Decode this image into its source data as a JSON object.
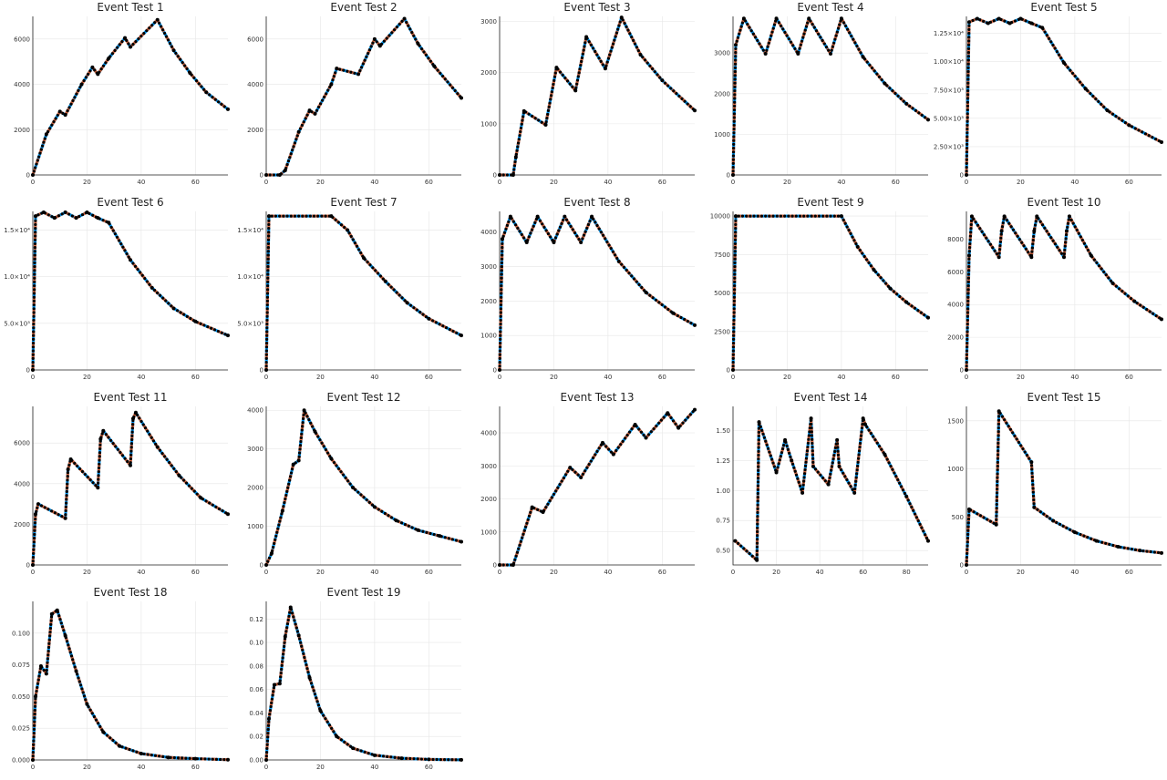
{
  "chart_data": [
    {
      "type": "line",
      "title": "Event Test 1",
      "xlim": [
        0,
        72
      ],
      "ylim": [
        0,
        7000
      ],
      "xticks": [
        0,
        20,
        40,
        60
      ],
      "yticks": [
        0,
        2000,
        4000,
        6000
      ],
      "ytick_labels": [
        "0",
        "2000",
        "4000",
        "6000"
      ],
      "series": [
        {
          "x": [
            0,
            5,
            10,
            12,
            18,
            22,
            24,
            28,
            34,
            36,
            46,
            52,
            58,
            64,
            72
          ],
          "y": [
            0,
            1800,
            2800,
            2650,
            4000,
            4750,
            4450,
            5150,
            6050,
            5650,
            6850,
            5500,
            4500,
            3650,
            2900
          ]
        }
      ]
    },
    {
      "type": "line",
      "title": "Event Test 2",
      "xlim": [
        0,
        72
      ],
      "ylim": [
        0,
        7000
      ],
      "xticks": [
        0,
        20,
        40,
        60
      ],
      "yticks": [
        0,
        2000,
        4000,
        6000
      ],
      "ytick_labels": [
        "0",
        "2000",
        "4000",
        "6000"
      ],
      "series": [
        {
          "x": [
            0,
            5,
            7,
            12,
            16,
            18,
            24,
            26,
            34,
            40,
            42,
            51,
            56,
            62,
            72
          ],
          "y": [
            0,
            0,
            200,
            1900,
            2850,
            2700,
            4000,
            4700,
            4450,
            6000,
            5700,
            6900,
            5800,
            4800,
            3400
          ]
        }
      ]
    },
    {
      "type": "line",
      "title": "Event Test 3",
      "xlim": [
        0,
        72
      ],
      "ylim": [
        0,
        3100
      ],
      "xticks": [
        0,
        20,
        40,
        60
      ],
      "yticks": [
        0,
        1000,
        2000,
        3000
      ],
      "ytick_labels": [
        "0",
        "1000",
        "2000",
        "3000"
      ],
      "series": [
        {
          "x": [
            0,
            5,
            6,
            9,
            17,
            21,
            28,
            32,
            39,
            45,
            52,
            60,
            72
          ],
          "y": [
            0,
            0,
            350,
            1250,
            980,
            2100,
            1650,
            2700,
            2080,
            3080,
            2350,
            1850,
            1260
          ]
        }
      ]
    },
    {
      "type": "line",
      "title": "Event Test 4",
      "xlim": [
        0,
        72
      ],
      "ylim": [
        0,
        3900
      ],
      "xticks": [
        0,
        20,
        40,
        60
      ],
      "yticks": [
        0,
        1000,
        2000,
        3000
      ],
      "ytick_labels": [
        "0",
        "1000",
        "2000",
        "3000"
      ],
      "series": [
        {
          "x": [
            0,
            1,
            4,
            12,
            16,
            24,
            28,
            36,
            40,
            48,
            56,
            64,
            72
          ],
          "y": [
            0,
            3200,
            3850,
            2980,
            3850,
            2980,
            3850,
            2980,
            3850,
            2900,
            2250,
            1750,
            1360
          ]
        }
      ]
    },
    {
      "type": "line",
      "title": "Event Test 5",
      "xlim": [
        0,
        72
      ],
      "ylim": [
        0,
        14000
      ],
      "xticks": [
        0,
        20,
        40,
        60
      ],
      "yticks": [
        0,
        2500,
        5000,
        7500,
        10000,
        12500
      ],
      "ytick_labels": [
        "0",
        "2.50×10³",
        "5.00×10³",
        "7.50×10³",
        "1.00×10⁴",
        "1.25×10⁴"
      ],
      "series": [
        {
          "x": [
            0,
            1,
            4,
            8,
            12,
            16,
            20,
            24,
            28,
            36,
            44,
            52,
            60,
            72
          ],
          "y": [
            0,
            13500,
            13800,
            13400,
            13800,
            13400,
            13800,
            13400,
            13000,
            9900,
            7600,
            5700,
            4400,
            2900
          ]
        }
      ]
    },
    {
      "type": "line",
      "title": "Event Test 6",
      "xlim": [
        0,
        72
      ],
      "ylim": [
        0,
        17000
      ],
      "xticks": [
        0,
        20,
        40,
        60
      ],
      "yticks": [
        0,
        5000,
        10000,
        15000
      ],
      "ytick_labels": [
        "0",
        "5.0×10³",
        "1.0×10⁴",
        "1.5×10⁴"
      ],
      "series": [
        {
          "x": [
            0,
            1,
            4,
            8,
            12,
            16,
            20,
            24,
            28,
            36,
            44,
            52,
            60,
            72
          ],
          "y": [
            0,
            16500,
            16900,
            16300,
            16900,
            16300,
            16900,
            16300,
            15800,
            11800,
            8800,
            6600,
            5200,
            3700
          ]
        }
      ]
    },
    {
      "type": "line",
      "title": "Event Test 7",
      "xlim": [
        0,
        72
      ],
      "ylim": [
        0,
        17000
      ],
      "xticks": [
        0,
        20,
        40,
        60
      ],
      "yticks": [
        0,
        5000,
        10000,
        15000
      ],
      "ytick_labels": [
        "0",
        "5.0×10³",
        "1.0×10⁴",
        "1.5×10⁴"
      ],
      "series": [
        {
          "x": [
            0,
            1,
            24,
            30,
            36,
            44,
            52,
            60,
            72
          ],
          "y": [
            0,
            16500,
            16500,
            15000,
            12000,
            9500,
            7200,
            5500,
            3700
          ]
        }
      ]
    },
    {
      "type": "line",
      "title": "Event Test 8",
      "xlim": [
        0,
        72
      ],
      "ylim": [
        0,
        4600
      ],
      "xticks": [
        0,
        20,
        40,
        60
      ],
      "yticks": [
        0,
        1000,
        2000,
        3000,
        4000
      ],
      "ytick_labels": [
        "0",
        "1000",
        "2000",
        "3000",
        "4000"
      ],
      "series": [
        {
          "x": [
            0,
            1,
            4,
            10,
            14,
            20,
            24,
            30,
            34,
            44,
            54,
            64,
            72
          ],
          "y": [
            0,
            3800,
            4450,
            3700,
            4450,
            3700,
            4450,
            3700,
            4450,
            3150,
            2250,
            1650,
            1300
          ]
        }
      ]
    },
    {
      "type": "line",
      "title": "Event Test 9",
      "xlim": [
        0,
        72
      ],
      "ylim": [
        0,
        10300
      ],
      "xticks": [
        0,
        20,
        40,
        60
      ],
      "yticks": [
        0,
        2500,
        5000,
        7500,
        10000
      ],
      "ytick_labels": [
        "0",
        "2500",
        "5000",
        "7500",
        "10000"
      ],
      "series": [
        {
          "x": [
            0,
            1,
            40,
            46,
            52,
            58,
            64,
            72
          ],
          "y": [
            0,
            10000,
            10000,
            8000,
            6500,
            5300,
            4400,
            3400
          ]
        }
      ]
    },
    {
      "type": "line",
      "title": "Event Test 10",
      "xlim": [
        0,
        72
      ],
      "ylim": [
        0,
        9700
      ],
      "xticks": [
        0,
        20,
        40,
        60
      ],
      "yticks": [
        0,
        2000,
        4000,
        6000,
        8000
      ],
      "ytick_labels": [
        "0",
        "2000",
        "4000",
        "6000",
        "8000"
      ],
      "series": [
        {
          "x": [
            0,
            1,
            2,
            12,
            13,
            14,
            24,
            25,
            26,
            36,
            37,
            38,
            46,
            54,
            62,
            72
          ],
          "y": [
            0,
            7000,
            9400,
            6900,
            8500,
            9400,
            6900,
            8500,
            9400,
            6900,
            8500,
            9400,
            7000,
            5300,
            4200,
            3100
          ]
        }
      ]
    },
    {
      "type": "line",
      "title": "Event Test 11",
      "xlim": [
        0,
        72
      ],
      "ylim": [
        0,
        7800
      ],
      "xticks": [
        0,
        20,
        40,
        60
      ],
      "yticks": [
        0,
        2000,
        4000,
        6000
      ],
      "ytick_labels": [
        "0",
        "2000",
        "4000",
        "6000"
      ],
      "series": [
        {
          "x": [
            0,
            1,
            2,
            12,
            13,
            14,
            24,
            25,
            26,
            36,
            37,
            38,
            46,
            54,
            62,
            72
          ],
          "y": [
            0,
            2500,
            3000,
            2300,
            4700,
            5200,
            3800,
            6200,
            6600,
            4900,
            7200,
            7500,
            5800,
            4400,
            3300,
            2500
          ]
        }
      ]
    },
    {
      "type": "line",
      "title": "Event Test 12",
      "xlim": [
        0,
        72
      ],
      "ylim": [
        0,
        4100
      ],
      "xticks": [
        0,
        20,
        40,
        60
      ],
      "yticks": [
        0,
        1000,
        2000,
        3000,
        4000
      ],
      "ytick_labels": [
        "0",
        "1000",
        "2000",
        "3000",
        "4000"
      ],
      "series": [
        {
          "x": [
            0,
            2,
            6,
            10,
            12,
            14,
            18,
            24,
            32,
            40,
            48,
            56,
            64,
            72
          ],
          "y": [
            0,
            300,
            1400,
            2600,
            2700,
            4000,
            3450,
            2750,
            2000,
            1500,
            1150,
            900,
            750,
            600
          ]
        }
      ]
    },
    {
      "type": "line",
      "title": "Event Test 13",
      "xlim": [
        0,
        72
      ],
      "ylim": [
        0,
        4800
      ],
      "xticks": [
        0,
        20,
        40,
        60
      ],
      "yticks": [
        0,
        1000,
        2000,
        3000,
        4000
      ],
      "ytick_labels": [
        "0",
        "1000",
        "2000",
        "3000",
        "4000"
      ],
      "series": [
        {
          "x": [
            0,
            5,
            12,
            16,
            26,
            30,
            38,
            42,
            50,
            54,
            62,
            66,
            72
          ],
          "y": [
            0,
            0,
            1750,
            1600,
            2950,
            2650,
            3700,
            3350,
            4250,
            3850,
            4600,
            4150,
            4700
          ]
        }
      ]
    },
    {
      "type": "line",
      "title": "Event Test 14",
      "xlim": [
        0,
        90
      ],
      "ylim": [
        0.38,
        1.7
      ],
      "xticks": [
        0,
        20,
        40,
        60,
        80
      ],
      "yticks": [
        0.5,
        0.75,
        1.0,
        1.25,
        1.5
      ],
      "ytick_labels": [
        "0.50",
        "0.75",
        "1.00",
        "1.25",
        "1.50"
      ],
      "series": [
        {
          "x": [
            1,
            11,
            12,
            20,
            24,
            27,
            32,
            36,
            37,
            44,
            48,
            49,
            56,
            60,
            61,
            70,
            80,
            90
          ],
          "y": [
            0.58,
            0.42,
            1.57,
            1.15,
            1.42,
            1.25,
            0.98,
            1.6,
            1.2,
            1.05,
            1.42,
            1.2,
            0.98,
            1.6,
            1.55,
            1.3,
            0.95,
            0.58
          ]
        }
      ]
    },
    {
      "type": "line",
      "title": "Event Test 15",
      "xlim": [
        0,
        72
      ],
      "ylim": [
        0,
        1650
      ],
      "xticks": [
        0,
        20,
        40,
        60
      ],
      "yticks": [
        0,
        500,
        1000,
        1500
      ],
      "ytick_labels": [
        "0",
        "500",
        "1000",
        "1500"
      ],
      "series": [
        {
          "x": [
            0,
            1,
            11,
            12,
            24,
            25,
            32,
            40,
            48,
            56,
            64,
            72
          ],
          "y": [
            0,
            580,
            420,
            1600,
            1070,
            600,
            460,
            340,
            250,
            190,
            150,
            125
          ]
        }
      ]
    },
    {
      "type": "line",
      "title": "Event Test 18",
      "xlim": [
        0,
        72
      ],
      "ylim": [
        0,
        0.125
      ],
      "xticks": [
        0,
        20,
        40,
        60
      ],
      "yticks": [
        0,
        0.025,
        0.05,
        0.075,
        0.1
      ],
      "ytick_labels": [
        "0.000",
        "0.025",
        "0.050",
        "0.075",
        "0.100"
      ],
      "series": [
        {
          "x": [
            0,
            1,
            3,
            5,
            7,
            9,
            12,
            16,
            20,
            26,
            32,
            40,
            50,
            60,
            72
          ],
          "y": [
            0,
            0.05,
            0.074,
            0.068,
            0.115,
            0.118,
            0.098,
            0.07,
            0.044,
            0.022,
            0.011,
            0.005,
            0.002,
            0.001,
            0.0002
          ]
        }
      ]
    },
    {
      "type": "line",
      "title": "Event Test 19",
      "xlim": [
        0,
        72
      ],
      "ylim": [
        0,
        0.135
      ],
      "xticks": [
        0,
        20,
        40,
        60
      ],
      "yticks": [
        0,
        0.02,
        0.04,
        0.06,
        0.08,
        0.1,
        0.12
      ],
      "ytick_labels": [
        "0.00",
        "0.02",
        "0.04",
        "0.06",
        "0.08",
        "0.10",
        "0.12"
      ],
      "series": [
        {
          "x": [
            0,
            1,
            3,
            5,
            7,
            9,
            12,
            16,
            20,
            26,
            32,
            40,
            50,
            60,
            72
          ],
          "y": [
            0,
            0.035,
            0.064,
            0.065,
            0.105,
            0.13,
            0.106,
            0.07,
            0.042,
            0.02,
            0.01,
            0.004,
            0.0015,
            0.0005,
            0.0001
          ]
        }
      ]
    }
  ],
  "colors": {
    "series_a": "#009af9",
    "series_b": "#e26f46",
    "markers": "#000000",
    "grid": "#e6e6e6"
  },
  "legend": "none",
  "grid": true
}
